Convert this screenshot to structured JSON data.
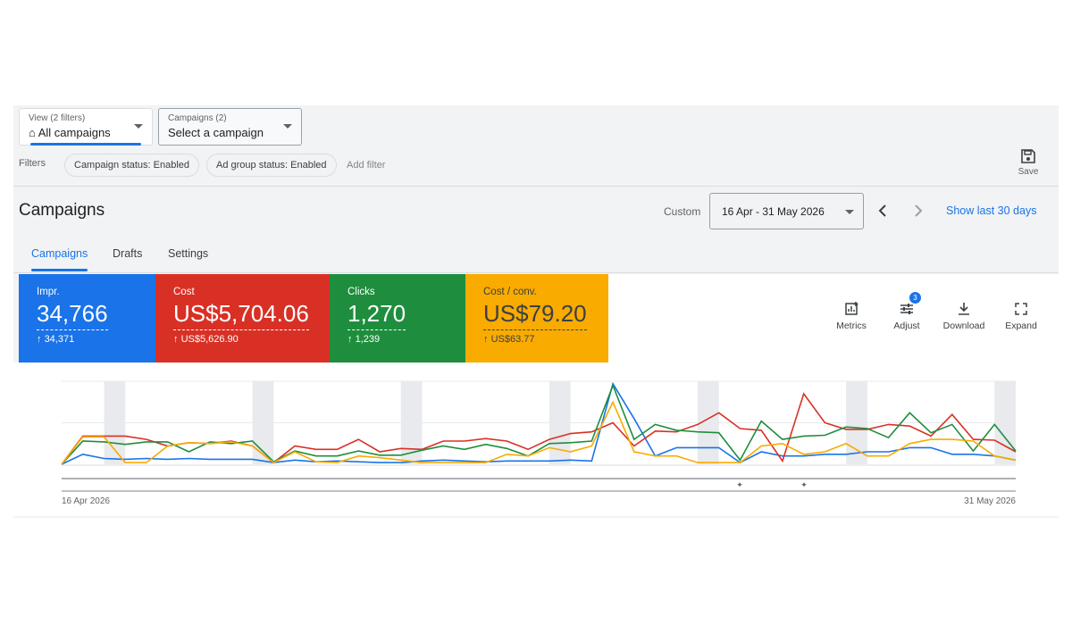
{
  "filters_bar": {
    "view": {
      "label": "View (2 filters)",
      "value": "All campaigns"
    },
    "campaign_picker": {
      "label": "Campaigns (2)",
      "value": "Select a campaign"
    },
    "filters_label": "Filters",
    "chips": [
      "Campaign status: Enabled",
      "Ad group status: Enabled"
    ],
    "add_filter": "Add filter",
    "save": "Save"
  },
  "header": {
    "title": "Campaigns",
    "date_label": "Custom",
    "date_range": "16 Apr - 31 May 2026",
    "show_last": "Show last 30 days"
  },
  "tabs": [
    "Campaigns",
    "Drafts",
    "Settings"
  ],
  "metrics": [
    {
      "label": "Impr.",
      "value": "34,766",
      "change": "34,371",
      "color": "#1a73e8"
    },
    {
      "label": "Cost",
      "value": "US$5,704.06",
      "change": "US$5,626.90",
      "color": "#d93025"
    },
    {
      "label": "Clicks",
      "value": "1,270",
      "change": "1,239",
      "color": "#1e8e3e"
    },
    {
      "label": "Cost / conv.",
      "value": "US$79.20",
      "change": "US$63.77",
      "color": "#f9ab00"
    }
  ],
  "tools": [
    {
      "label": "Metrics"
    },
    {
      "label": "Adjust",
      "badge": "3"
    },
    {
      "label": "Download"
    },
    {
      "label": "Expand"
    }
  ],
  "chart_data": {
    "type": "line",
    "categories": [
      "16 Apr 2026",
      null,
      null,
      null,
      null,
      null,
      null,
      null,
      null,
      null,
      null,
      null,
      null,
      null,
      null,
      null,
      null,
      null,
      null,
      null,
      null,
      null,
      null,
      null,
      null,
      null,
      null,
      null,
      null,
      null,
      null,
      null,
      null,
      null,
      null,
      null,
      null,
      null,
      null,
      null,
      null,
      null,
      null,
      null,
      null,
      "31 May 2026"
    ],
    "ylim": [
      0,
      100
    ],
    "series": [
      {
        "color": "#1a73e8",
        "values": [
          0,
          12,
          7,
          6,
          7,
          6,
          7,
          6,
          6,
          6,
          2,
          5,
          3,
          4,
          3,
          2,
          2,
          4,
          5,
          4,
          3,
          4,
          4,
          4,
          5,
          4,
          97,
          55,
          10,
          20,
          20,
          20,
          2,
          15,
          10,
          10,
          12,
          12,
          15,
          15,
          20,
          20,
          12,
          12,
          10,
          5
        ]
      },
      {
        "color": "#d93025",
        "values": [
          0,
          34,
          34,
          34,
          30,
          22,
          26,
          25,
          28,
          22,
          2,
          22,
          18,
          18,
          30,
          15,
          19,
          18,
          28,
          28,
          31,
          28,
          18,
          30,
          37,
          39,
          50,
          22,
          40,
          39,
          48,
          62,
          43,
          41,
          4,
          85,
          50,
          42,
          42,
          48,
          46,
          34,
          60,
          30,
          29,
          15
        ]
      },
      {
        "color": "#1e8e3e",
        "values": [
          0,
          28,
          27,
          24,
          27,
          27,
          15,
          27,
          25,
          28,
          3,
          16,
          10,
          10,
          16,
          11,
          11,
          17,
          22,
          18,
          24,
          19,
          10,
          25,
          26,
          28,
          95,
          30,
          48,
          41,
          39,
          38,
          5,
          52,
          30,
          34,
          35,
          45,
          43,
          32,
          62,
          38,
          48,
          16,
          48,
          16
        ]
      },
      {
        "color": "#f9ab00",
        "values": [
          0,
          33,
          33,
          2,
          2,
          22,
          26,
          25,
          27,
          22,
          2,
          15,
          3,
          2,
          10,
          8,
          5,
          2,
          2,
          2,
          2,
          12,
          10,
          20,
          15,
          22,
          75,
          15,
          10,
          10,
          2,
          2,
          2,
          22,
          25,
          12,
          15,
          25,
          10,
          10,
          25,
          30,
          30,
          28,
          10,
          5
        ]
      }
    ]
  }
}
